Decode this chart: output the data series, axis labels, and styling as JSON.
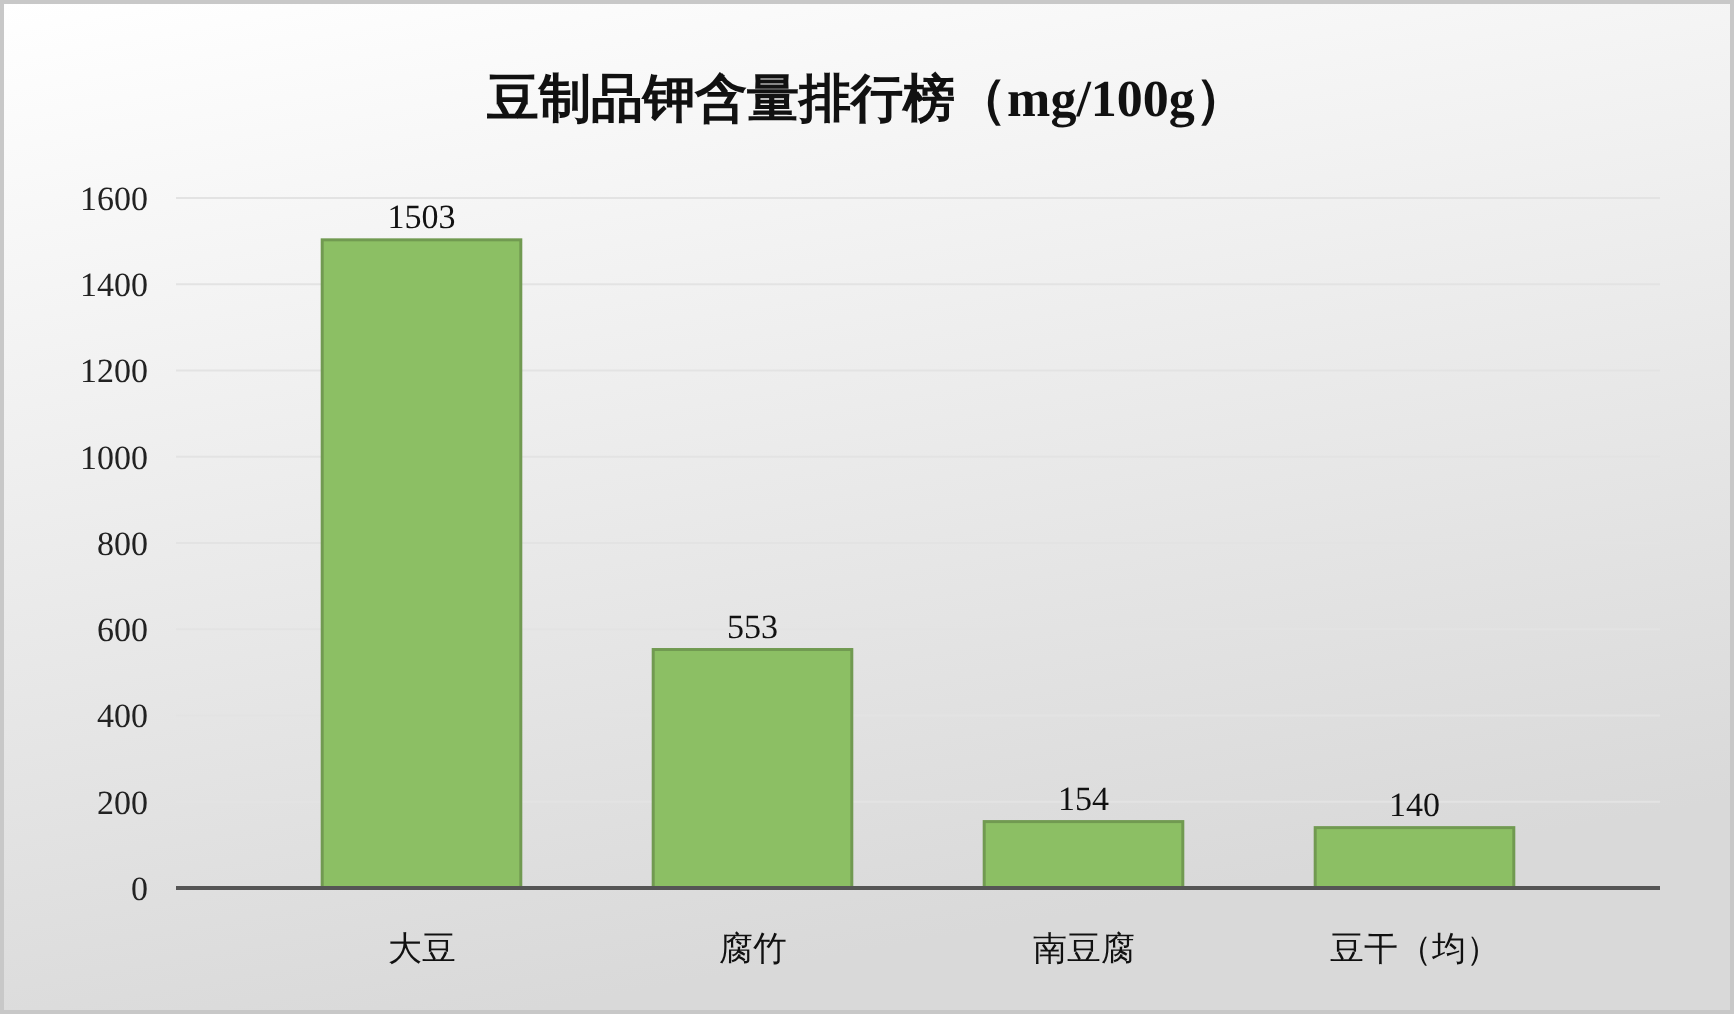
{
  "chart_data": {
    "type": "bar",
    "title": "豆制品钾含量排行榜（mg/100g）",
    "categories": [
      "大豆",
      "腐竹",
      "南豆腐",
      "豆干（均）"
    ],
    "values": [
      1503,
      553,
      154,
      140
    ],
    "color": "#8cbf64",
    "ylim": [
      0,
      1600
    ],
    "yticks": [
      0,
      200,
      400,
      600,
      800,
      1000,
      1200,
      1400,
      1600
    ],
    "grid": "y",
    "data_labels": true
  }
}
